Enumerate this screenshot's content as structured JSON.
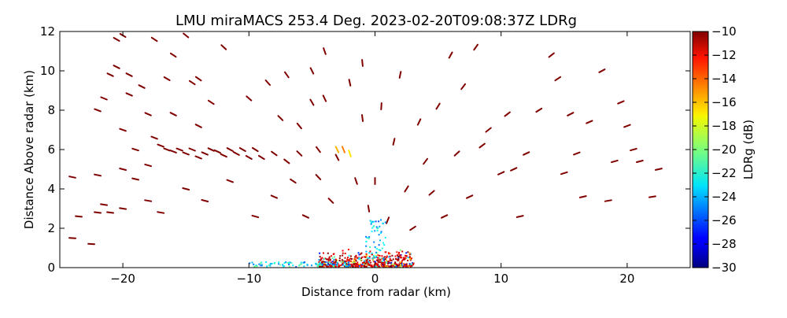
{
  "chart_data": {
    "type": "heatmap",
    "title": "LMU miraMACS 253.4 Deg. 2023-02-20T09:08:37Z  LDRg",
    "xlabel": "Distance from radar (km)",
    "ylabel": "Distance Above radar  (km)",
    "xlim": [
      -25,
      25
    ],
    "ylim": [
      0,
      12
    ],
    "x_ticks": [
      -20,
      -10,
      0,
      10,
      20
    ],
    "x_tick_labels": [
      "−20",
      "−10",
      "0",
      "10",
      "20"
    ],
    "y_ticks": [
      0,
      2,
      4,
      6,
      8,
      10,
      12
    ],
    "y_tick_labels": [
      "0",
      "2",
      "4",
      "6",
      "8",
      "10",
      "12"
    ],
    "colorbar": {
      "label": "LDRg (dB)",
      "range": [
        -30,
        -10
      ],
      "ticks": [
        -30,
        -28,
        -26,
        -24,
        -22,
        -20,
        -18,
        -16,
        -14,
        -12,
        -10
      ],
      "tick_labels": [
        "−30",
        "−28",
        "−26",
        "−24",
        "−22",
        "−20",
        "−18",
        "−16",
        "−14",
        "−12",
        "−10"
      ],
      "colormap": "jet"
    },
    "grid": false,
    "field_description": "Sparse dark-red LDRg returns scattered along RHI range rings (approx. -10 dB), dense mixed-colour returns near ground within about 5 km of radar, and an orange/yellow band near 6 km altitude around x = -3 km.",
    "points": [
      [
        -24,
        1.5,
        -10
      ],
      [
        -24,
        4.6,
        -10
      ],
      [
        -23.5,
        2.6,
        -10
      ],
      [
        -22.5,
        1.2,
        -10
      ],
      [
        -22,
        2.8,
        -10
      ],
      [
        -22,
        4.7,
        -10
      ],
      [
        -22,
        8.0,
        -10
      ],
      [
        -21.5,
        8.6,
        -10
      ],
      [
        -21.5,
        3.2,
        -10
      ],
      [
        -21,
        9.8,
        -10
      ],
      [
        -21,
        2.8,
        -10
      ],
      [
        -20.5,
        11.6,
        -10
      ],
      [
        -20.5,
        10.2,
        -10
      ],
      [
        -20,
        11.8,
        -10
      ],
      [
        -20,
        5.0,
        -10
      ],
      [
        -20,
        3.0,
        -10
      ],
      [
        -20,
        7.0,
        -10
      ],
      [
        -19.5,
        9.8,
        -10
      ],
      [
        -19.5,
        8.8,
        -10
      ],
      [
        -19,
        6.0,
        -10
      ],
      [
        -19,
        4.5,
        -10
      ],
      [
        -18.5,
        9.2,
        -10
      ],
      [
        -18,
        7.8,
        -10
      ],
      [
        -18,
        5.2,
        -10
      ],
      [
        -18,
        3.4,
        -10
      ],
      [
        -17.5,
        11.6,
        -10
      ],
      [
        -17.5,
        6.6,
        -10
      ],
      [
        -17,
        6.2,
        -10
      ],
      [
        -17,
        2.8,
        -10
      ],
      [
        -16.5,
        6.0,
        -10
      ],
      [
        -16.5,
        9.6,
        -10
      ],
      [
        -16,
        5.9,
        -10
      ],
      [
        -16,
        7.8,
        -10
      ],
      [
        -16,
        10.8,
        -10
      ],
      [
        -15.5,
        6.0,
        -10
      ],
      [
        -15,
        5.8,
        -10
      ],
      [
        -15,
        4.0,
        -10
      ],
      [
        -15,
        11.8,
        -10
      ],
      [
        -14.5,
        9.4,
        -10
      ],
      [
        -14.5,
        6.0,
        -10
      ],
      [
        -14,
        5.6,
        -10
      ],
      [
        -14,
        7.2,
        -10
      ],
      [
        -14,
        9.6,
        -10
      ],
      [
        -13.5,
        5.8,
        -10
      ],
      [
        -13.5,
        3.4,
        -10
      ],
      [
        -13,
        6.0,
        -10
      ],
      [
        -13,
        8.4,
        -10
      ],
      [
        -12.5,
        5.9,
        -10
      ],
      [
        -12,
        5.7,
        -10
      ],
      [
        -12,
        11.2,
        -10
      ],
      [
        -11.5,
        6.0,
        -10
      ],
      [
        -11.5,
        4.4,
        -10
      ],
      [
        -11,
        5.8,
        -10
      ],
      [
        -10.5,
        6.0,
        -10
      ],
      [
        -10,
        5.6,
        -10
      ],
      [
        -10,
        8.6,
        -10
      ],
      [
        -9.5,
        6.0,
        -10
      ],
      [
        -9.5,
        2.6,
        -10
      ],
      [
        -9,
        5.6,
        -10
      ],
      [
        -8.5,
        9.4,
        -10
      ],
      [
        -8,
        5.8,
        -10
      ],
      [
        -8,
        3.6,
        -10
      ],
      [
        -7.5,
        7.6,
        -10
      ],
      [
        -7,
        5.4,
        -10
      ],
      [
        -7,
        9.8,
        -10
      ],
      [
        -6.5,
        4.4,
        -10
      ],
      [
        -6,
        5.8,
        -10
      ],
      [
        -6,
        7.2,
        -10
      ],
      [
        -5.5,
        2.6,
        -10
      ],
      [
        -5,
        8.4,
        -10
      ],
      [
        -5,
        10.0,
        -10
      ],
      [
        -4.5,
        4.6,
        -10
      ],
      [
        -4.5,
        6.0,
        -10
      ],
      [
        -4,
        8.6,
        -10
      ],
      [
        -4,
        11.0,
        -10
      ],
      [
        -3.5,
        3.4,
        -10
      ],
      [
        -3,
        5.6,
        -10
      ],
      [
        -3,
        6.0,
        -16
      ],
      [
        -2.5,
        6.0,
        -15
      ],
      [
        -2,
        5.8,
        -17
      ],
      [
        -2,
        9.4,
        -10
      ],
      [
        -1.5,
        4.4,
        -10
      ],
      [
        -1,
        7.6,
        -10
      ],
      [
        -1,
        10.4,
        -10
      ],
      [
        -0.5,
        3.0,
        -10
      ],
      [
        0,
        4.4,
        -10
      ],
      [
        0.5,
        8.2,
        -10
      ],
      [
        1,
        2.4,
        -10
      ],
      [
        1.5,
        6.4,
        -10
      ],
      [
        2,
        9.8,
        -10
      ],
      [
        2.5,
        4.0,
        -10
      ],
      [
        3,
        2.0,
        -10
      ],
      [
        3.5,
        7.4,
        -10
      ],
      [
        4,
        5.4,
        -10
      ],
      [
        4.5,
        3.8,
        -10
      ],
      [
        5,
        8.2,
        -10
      ],
      [
        5.5,
        2.6,
        -10
      ],
      [
        6,
        10.8,
        -10
      ],
      [
        6.5,
        5.8,
        -10
      ],
      [
        7,
        9.2,
        -10
      ],
      [
        7.5,
        3.6,
        -10
      ],
      [
        8,
        11.2,
        -10
      ],
      [
        8.5,
        6.2,
        -10
      ],
      [
        9,
        7.0,
        -10
      ],
      [
        10,
        4.8,
        -10
      ],
      [
        10.5,
        7.8,
        -10
      ],
      [
        11,
        5.0,
        -10
      ],
      [
        11.5,
        2.6,
        -10
      ],
      [
        12,
        5.8,
        -10
      ],
      [
        13,
        8.0,
        -10
      ],
      [
        14,
        10.8,
        -10
      ],
      [
        14.5,
        9.6,
        -10
      ],
      [
        15,
        4.8,
        -10
      ],
      [
        15.5,
        7.8,
        -10
      ],
      [
        16,
        5.8,
        -10
      ],
      [
        16.5,
        3.6,
        -10
      ],
      [
        17,
        7.4,
        -10
      ],
      [
        18,
        10.0,
        -10
      ],
      [
        18.5,
        3.4,
        -10
      ],
      [
        19,
        5.4,
        -10
      ],
      [
        19.5,
        8.4,
        -10
      ],
      [
        20,
        7.2,
        -10
      ],
      [
        20.5,
        6.0,
        -10
      ],
      [
        21,
        5.4,
        -10
      ],
      [
        22,
        3.6,
        -10
      ],
      [
        22.5,
        5.0,
        -10
      ]
    ]
  }
}
